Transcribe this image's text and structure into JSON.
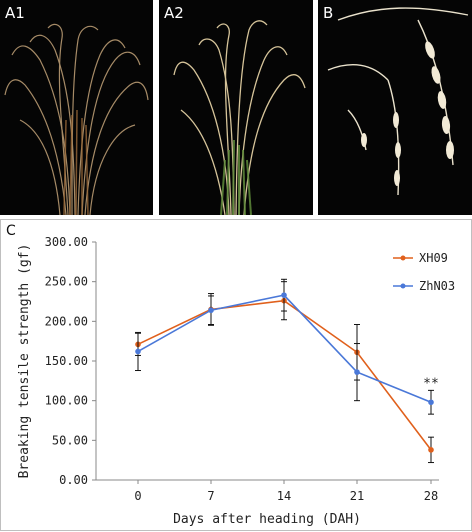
{
  "panels": {
    "a1": {
      "label": "A1"
    },
    "a2": {
      "label": "A2"
    },
    "b": {
      "label": "B"
    },
    "c": {
      "label": "C"
    }
  },
  "colors": {
    "xh09": "#e0601c",
    "zhn03": "#4a78d8"
  },
  "chart_data": {
    "type": "line",
    "x": [
      0,
      7,
      14,
      21,
      28
    ],
    "categories": [
      "0",
      "7",
      "14",
      "21",
      "28"
    ],
    "xlabel": "Days after heading (DAH)",
    "ylabel": "Breaking tensile strength (gf)",
    "ylim": [
      0,
      300
    ],
    "yticks": [
      "0.00",
      "50.00",
      "100.00",
      "150.00",
      "200.00",
      "250.00",
      "300.00"
    ],
    "legend_position": "top-right",
    "series": [
      {
        "name": "XH09",
        "color": "#e0601c",
        "values": [
          171,
          215,
          226,
          161,
          38
        ],
        "errors": [
          14,
          20,
          24,
          35,
          16
        ]
      },
      {
        "name": "ZhN03",
        "color": "#4a78d8",
        "values": [
          162,
          214,
          233,
          136,
          98
        ],
        "errors": [
          24,
          18,
          20,
          36,
          15
        ]
      }
    ],
    "annotations": [
      {
        "text": "**",
        "x": 28
      }
    ]
  }
}
